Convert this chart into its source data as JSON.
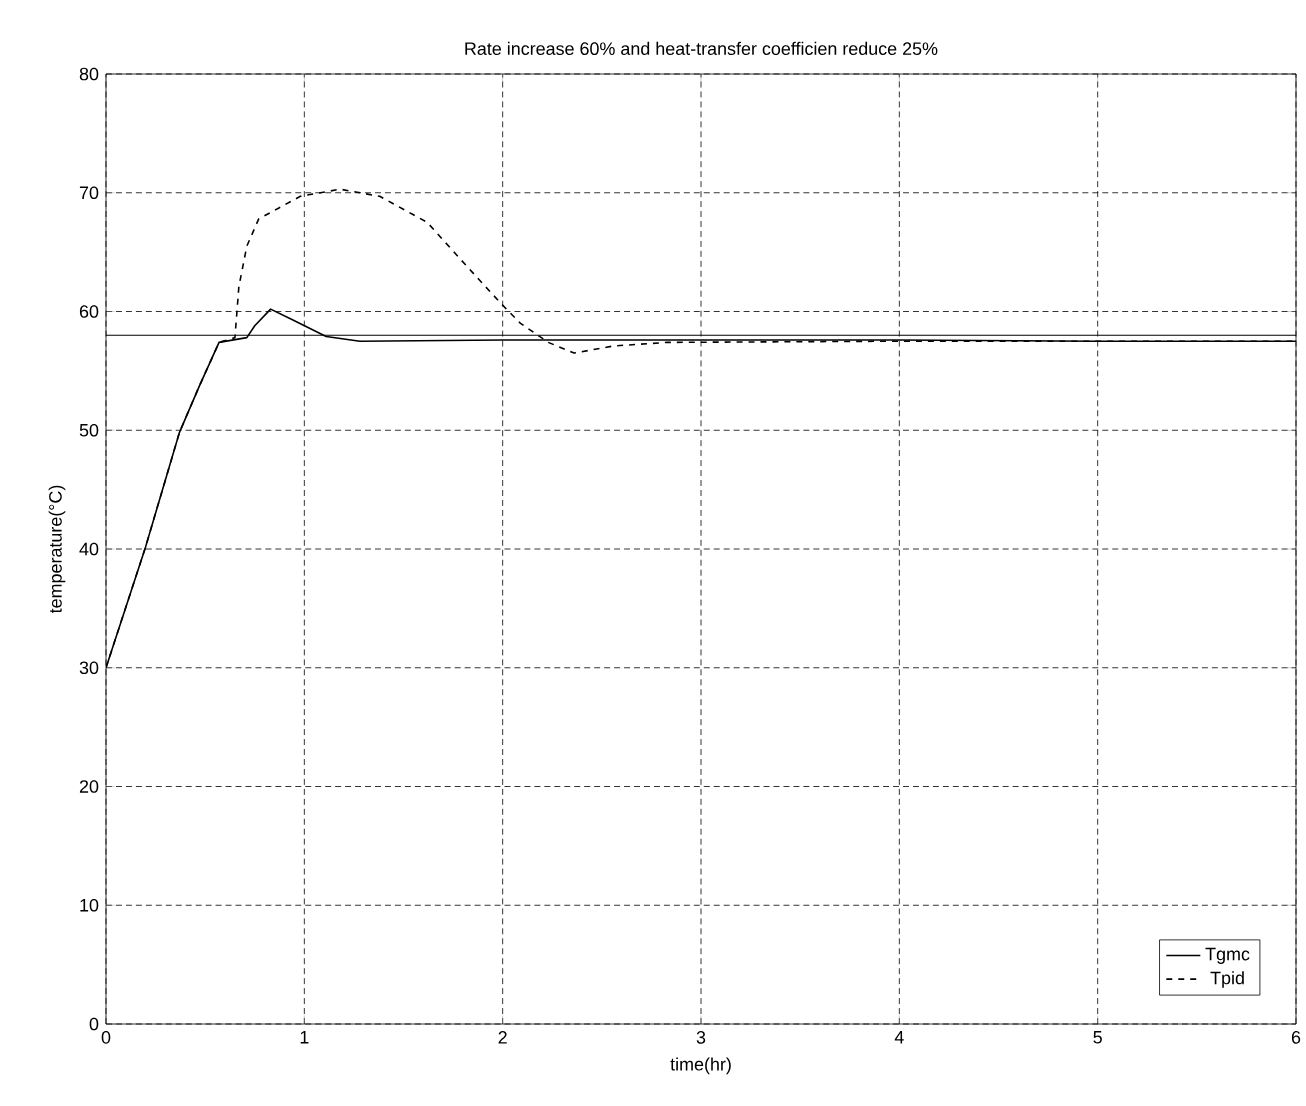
{
  "chart_data": {
    "type": "line",
    "title": "Rate  increase 60% and heat-transfer coefficien  reduce 25%",
    "xlabel": "time(hr)",
    "ylabel": "temperature(°C)",
    "xlim": [
      0,
      6
    ],
    "ylim": [
      0,
      80
    ],
    "xticks": [
      0,
      1,
      2,
      3,
      4,
      5,
      6
    ],
    "yticks": [
      0,
      10,
      20,
      30,
      40,
      50,
      60,
      70,
      80
    ],
    "grid": true,
    "legend": "bottom right",
    "ref_lines": [
      {
        "axis": "y",
        "value": 58,
        "color": "#000000"
      }
    ],
    "series": [
      {
        "name": "Tgmc",
        "color": "#000000",
        "line_style": "solid",
        "x": [
          0,
          0.2,
          0.37,
          0.47,
          0.57,
          0.71,
          0.75,
          0.83,
          0.94,
          1.11,
          1.28,
          2,
          3,
          4,
          5,
          6
        ],
        "values": [
          30,
          40.2,
          49.8,
          53.7,
          57.4,
          57.8,
          58.8,
          60.2,
          59.3,
          57.9,
          57.5,
          57.6,
          57.6,
          57.6,
          57.5,
          57.5
        ]
      },
      {
        "name": "Tpid",
        "color": "#000000",
        "line_style": "dashed",
        "x": [
          0,
          0.2,
          0.37,
          0.47,
          0.57,
          0.65,
          0.67,
          0.71,
          0.77,
          0.98,
          1.18,
          1.38,
          1.62,
          1.82,
          1.99,
          2.09,
          2.23,
          2.36,
          2.56,
          2.83,
          4,
          6
        ],
        "values": [
          30,
          40.2,
          49.8,
          53.7,
          57.4,
          57.8,
          62.1,
          65.5,
          67.8,
          69.7,
          70.3,
          69.7,
          67.5,
          63.8,
          60.7,
          59.0,
          57.4,
          56.5,
          57.1,
          57.4,
          57.5,
          57.5
        ]
      }
    ]
  }
}
